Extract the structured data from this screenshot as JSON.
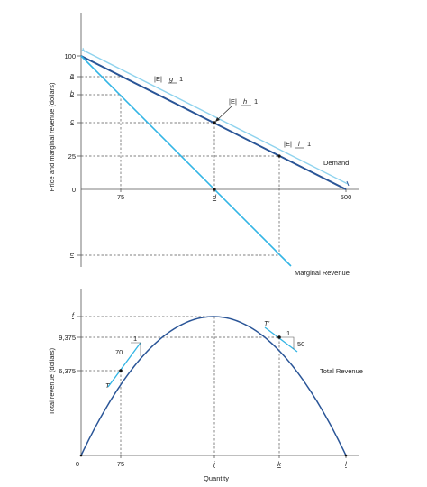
{
  "chart_data": [
    {
      "type": "line",
      "ylabel": "Price and marginal revenue (dollars)",
      "y_ticks": [
        "100",
        "a",
        "b",
        "c",
        "25",
        "0",
        "e"
      ],
      "x_ticks": [
        "75",
        "d",
        "500"
      ],
      "series": [
        {
          "name": "Demand",
          "points": [
            [
              0,
              100
            ],
            [
              500,
              0
            ]
          ]
        },
        {
          "name": "Marginal Revenue",
          "points": [
            [
              0,
              100
            ],
            [
              250,
              0
            ],
            [
              375,
              -50
            ]
          ]
        }
      ],
      "elasticity_labels": [
        {
          "prefix": "|E|",
          "letter": "g",
          "suffix": "1"
        },
        {
          "prefix": "|E|",
          "letter": "h",
          "suffix": "1"
        },
        {
          "prefix": "|E|",
          "letter": "i",
          "suffix": "1"
        }
      ]
    },
    {
      "type": "line",
      "ylabel": "Total revenue (dollars)",
      "xlabel": "Quantity",
      "y_ticks": [
        "f",
        "9,375",
        "6,375"
      ],
      "x_ticks": [
        "0",
        "75",
        "j",
        "k",
        "l"
      ],
      "series": [
        {
          "name": "Total Revenue",
          "points": [
            [
              0,
              0
            ],
            [
              75,
              6375
            ],
            [
              250,
              12500
            ],
            [
              375,
              9375
            ],
            [
              500,
              0
            ]
          ]
        }
      ],
      "tangent_points": [
        {
          "label": "T",
          "x": 75,
          "run": "1",
          "rise": "70"
        },
        {
          "label": "T'",
          "x": 375,
          "run": "1",
          "rise": "50"
        }
      ]
    }
  ]
}
